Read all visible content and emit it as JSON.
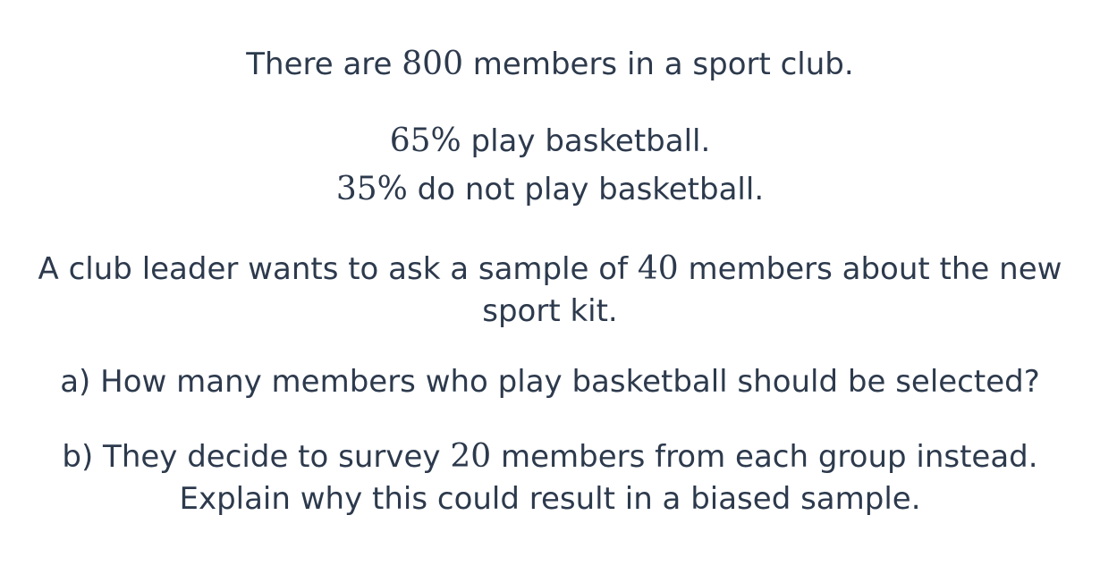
{
  "intro": {
    "before": "There are ",
    "num": "800",
    "after": " members in a sport club."
  },
  "stats": [
    {
      "num": "65%",
      "text": " play basketball."
    },
    {
      "num": "35%",
      "text": " do not play basketball."
    }
  ],
  "sample": {
    "before": "A club leader wants to ask a sample of ",
    "num": "40",
    "after": " members about the new",
    "line2": "sport kit."
  },
  "question_a": "a) How many members who play basketball should be selected?",
  "question_b": {
    "before": "b) They decide to survey ",
    "num": "20",
    "after": " members from each group instead.",
    "line2": "Explain why this could result in a biased sample."
  }
}
